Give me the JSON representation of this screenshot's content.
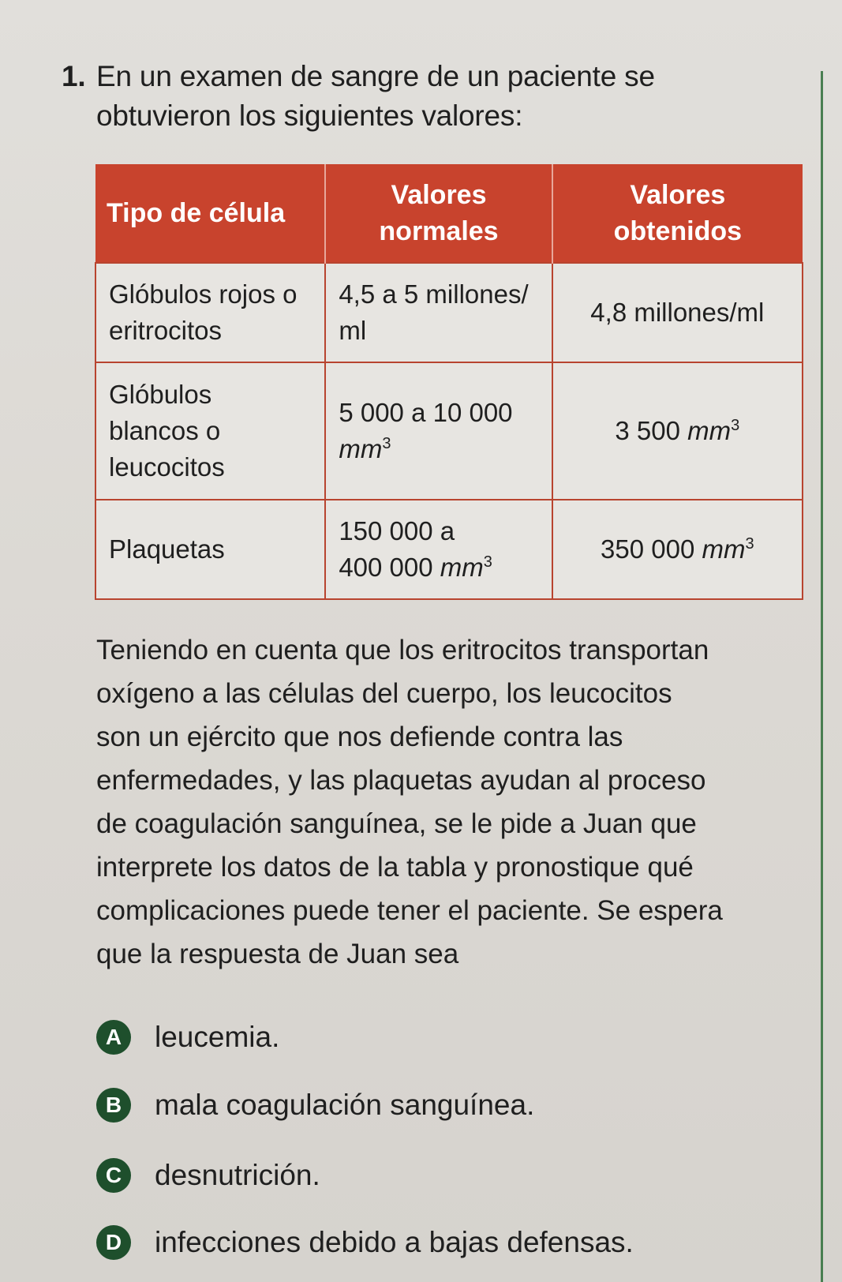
{
  "question": {
    "number": "1.",
    "line1": "En un examen de sangre de un paciente se",
    "line2": "obtuvieron los siguientes valores:"
  },
  "table": {
    "headers": {
      "cell_type": "Tipo de célula",
      "normal_1": "Valores",
      "normal_2": "normales",
      "obtained_1": "Valores",
      "obtained_2": "obtenidos"
    },
    "rows": [
      {
        "type_lines": [
          "Glóbulos rojos o",
          "eritrocitos"
        ],
        "normal_line1": "4,5 a 5 millones/",
        "normal_line2": "ml",
        "obtained_value": "4,8 millones/ml",
        "obtained_unit": "",
        "obtained_sup": ""
      },
      {
        "type_lines": [
          "Glóbulos",
          "blancos o",
          "leucocitos"
        ],
        "normal_line1": "5 000 a 10 000",
        "normal_line2": "mm",
        "normal_sup": "3",
        "obtained_value": "3 500 ",
        "obtained_unit": "mm",
        "obtained_sup": "3"
      },
      {
        "type_lines": [
          "Plaquetas"
        ],
        "normal_line1": "150 000 a",
        "normal_line2_value": "400 000 ",
        "normal_line2_unit": "mm",
        "normal_sup": "3",
        "obtained_value": "350 000 ",
        "obtained_unit": "mm",
        "obtained_sup": "3"
      }
    ]
  },
  "paragraph_lines": [
    "Teniendo en cuenta que los eritrocitos transportan",
    "oxígeno a las células del cuerpo, los leucocitos",
    "son un ejército que nos defiende contra las",
    "enfermedades, y las plaquetas ayudan al proceso",
    "de coagulación sanguínea, se le pide a Juan que",
    "interprete los datos de la tabla y pronostique qué",
    "complicaciones puede tener el paciente. Se espera",
    "que la respuesta de Juan sea"
  ],
  "options": [
    {
      "letter": "A",
      "text": "leucemia."
    },
    {
      "letter": "B",
      "text": "mala coagulación sanguínea."
    },
    {
      "letter": "C",
      "text": "desnutrición."
    },
    {
      "letter": "D",
      "text": "infecciones debido a bajas defensas."
    }
  ],
  "colors": {
    "header_red": "#c8432d",
    "bullet_green": "#1e4f2c",
    "rule_green": "#2f6e3a"
  }
}
